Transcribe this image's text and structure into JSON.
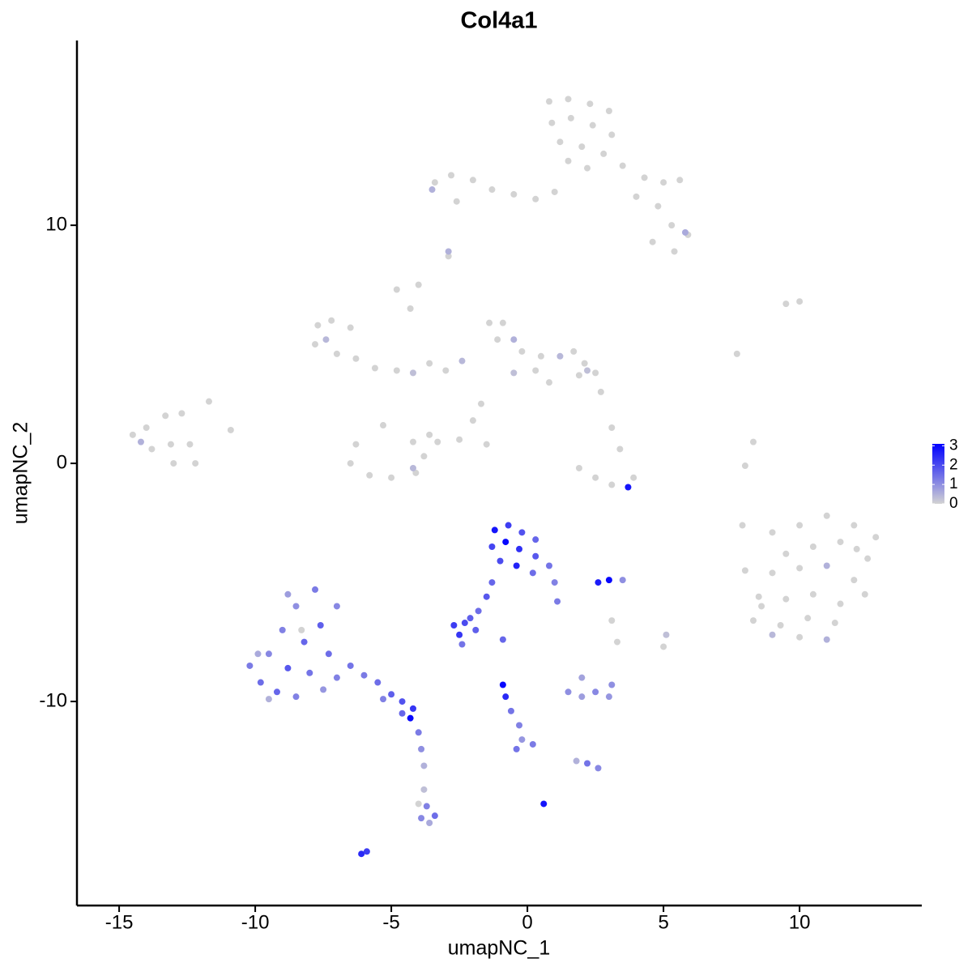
{
  "chart_data": {
    "type": "scatter",
    "title": "Col4a1",
    "x_label": "umapNC_1",
    "y_label": "umapNC_2",
    "xlim": [
      -16.55,
      14.49
    ],
    "ylim": [
      -18.57,
      17.76
    ],
    "xticks": [
      -15,
      -10,
      -5,
      0,
      5,
      10
    ],
    "yticks": [
      -10,
      0,
      10
    ],
    "grid": false,
    "color_scale": {
      "low": "#d3d3d3",
      "high": "#0000ff",
      "lim": [
        0,
        3.1
      ],
      "ticks": [
        0,
        1,
        2,
        3
      ]
    },
    "x": [
      0.8,
      1.5,
      2.3,
      3.0,
      0.9,
      1.6,
      2.4,
      3.1,
      1.2,
      2.0,
      2.8,
      1.5,
      2.2,
      3.5,
      4.3,
      5.0,
      5.6,
      4.0,
      4.8,
      5.3,
      5.9,
      4.6,
      5.4,
      1.0,
      0.3,
      -0.5,
      -1.3,
      -2.0,
      -2.8,
      -3.4,
      -2.6,
      -3.5,
      5.8,
      -2.9,
      -2.9,
      -7.7,
      -7.2,
      -6.5,
      -7.8,
      -7.0,
      -6.3,
      -5.6,
      -7.4,
      -4.8,
      -4.2,
      -3.6,
      -3.0,
      -2.4,
      -4.3,
      -4.0,
      -4.8,
      -1.7,
      -2.0,
      -2.5,
      -1.5,
      -1.4,
      -0.9,
      -1.1,
      -0.5,
      -0.2,
      0.5,
      1.2,
      1.7,
      2.1,
      2.5,
      1.9,
      2.2,
      0.8,
      -0.5,
      0.3,
      -6.3,
      -6.5,
      -5.8,
      -5.0,
      -4.1,
      -3.8,
      -4.2,
      -3.6,
      -5.3,
      -4.2,
      -3.3,
      -14.5,
      -14.0,
      -13.3,
      -12.7,
      -13.8,
      -13.1,
      -12.4,
      -12.2,
      -13.0,
      -14.2,
      -11.7,
      -10.9,
      1.9,
      2.5,
      3.1,
      3.9,
      3.7,
      3.4,
      3.1,
      2.7,
      7.7,
      8.0,
      8.3,
      9.5,
      10.0,
      7.9,
      9.0,
      10.0,
      11.0,
      12.0,
      12.8,
      9.5,
      10.5,
      11.5,
      12.5,
      8.0,
      9.0,
      10.0,
      11.0,
      12.0,
      8.5,
      9.5,
      10.5,
      11.5,
      12.4,
      8.3,
      9.3,
      10.3,
      11.3,
      9.0,
      10.0,
      11.0,
      8.6,
      12.1,
      -1.2,
      -0.7,
      -0.2,
      0.3,
      -1.3,
      -0.8,
      -0.3,
      0.3,
      -1.0,
      -0.4,
      0.2,
      0.8,
      1.0,
      1.1,
      -1.3,
      -1.5,
      -1.8,
      -2.1,
      -2.7,
      -2.3,
      -1.9,
      -2.5,
      -2.4,
      -0.9,
      2.6,
      3.0,
      3.5,
      5.1,
      5.0,
      3.3,
      3.1,
      1.5,
      2.0,
      2.5,
      3.0,
      3.1,
      2.0,
      -0.9,
      -0.8,
      -0.6,
      -0.3,
      -0.2,
      -0.4,
      0.2,
      1.8,
      2.2,
      2.6,
      0.6,
      -6.1,
      -5.9,
      -10.2,
      -9.8,
      -9.5,
      -9.2,
      -9.0,
      -8.8,
      -8.5,
      -8.5,
      -8.2,
      -8.0,
      -7.8,
      -7.6,
      -7.5,
      -7.3,
      -7.0,
      -7.0,
      -8.8,
      -9.5,
      -9.9,
      -8.3,
      -6.5,
      -6.0,
      -5.5,
      -5.0,
      -4.6,
      -4.2,
      -4.3,
      -4.6,
      -5.3,
      -4.0,
      -3.9,
      -3.8,
      -3.8,
      -3.7,
      -3.4,
      -3.6,
      -3.9,
      -4.0
    ],
    "y": [
      15.2,
      15.3,
      15.1,
      14.8,
      14.3,
      14.5,
      14.2,
      13.8,
      13.5,
      13.3,
      13.0,
      12.7,
      12.4,
      12.5,
      12.0,
      11.8,
      11.9,
      11.2,
      10.8,
      10.0,
      9.6,
      9.3,
      8.9,
      11.4,
      11.1,
      11.3,
      11.5,
      11.9,
      12.1,
      11.8,
      11.0,
      11.5,
      9.7,
      8.7,
      8.9,
      5.8,
      6.0,
      5.7,
      5.0,
      4.6,
      4.4,
      4.0,
      5.2,
      3.9,
      3.8,
      4.2,
      3.9,
      4.3,
      6.5,
      7.5,
      7.3,
      2.5,
      1.8,
      1.0,
      0.8,
      5.9,
      5.9,
      5.2,
      5.2,
      4.7,
      4.5,
      4.5,
      4.7,
      4.2,
      3.8,
      3.7,
      3.9,
      3.4,
      3.8,
      3.9,
      0.8,
      0.0,
      -0.5,
      -0.6,
      -0.4,
      0.3,
      0.9,
      1.2,
      1.6,
      -0.2,
      0.9,
      1.2,
      1.5,
      2.0,
      2.1,
      0.6,
      0.8,
      0.8,
      0.0,
      0.0,
      0.9,
      2.6,
      1.4,
      -0.2,
      -0.6,
      -0.9,
      -0.6,
      -1.0,
      0.6,
      1.5,
      3.0,
      4.6,
      -0.1,
      0.9,
      6.7,
      6.8,
      -2.6,
      -2.9,
      -2.6,
      -2.2,
      -2.6,
      -3.1,
      -3.8,
      -3.5,
      -3.3,
      -4.0,
      -4.5,
      -4.6,
      -4.4,
      -4.3,
      -4.9,
      -5.6,
      -5.7,
      -5.5,
      -5.9,
      -5.5,
      -6.6,
      -6.8,
      -6.5,
      -6.7,
      -7.2,
      -7.3,
      -7.4,
      -6.0,
      -3.6,
      -2.8,
      -2.6,
      -2.9,
      -3.2,
      -3.5,
      -3.3,
      -3.6,
      -3.9,
      -4.1,
      -4.3,
      -4.6,
      -4.3,
      -5.0,
      -5.8,
      -5.0,
      -5.6,
      -6.2,
      -6.5,
      -6.8,
      -6.7,
      -7.0,
      -7.2,
      -7.6,
      -7.4,
      -5.0,
      -4.9,
      -4.9,
      -7.2,
      -7.7,
      -7.5,
      -6.6,
      -9.6,
      -9.8,
      -9.6,
      -9.8,
      -9.3,
      -9.0,
      -9.3,
      -9.8,
      -10.4,
      -11.0,
      -11.6,
      -12.0,
      -11.8,
      -12.5,
      -12.6,
      -12.8,
      -14.3,
      -16.4,
      -16.3,
      -8.5,
      -9.2,
      -8.0,
      -9.6,
      -7.0,
      -8.6,
      -6.0,
      -9.8,
      -7.5,
      -8.8,
      -5.3,
      -6.8,
      -9.5,
      -8.0,
      -6.0,
      -9.0,
      -5.5,
      -9.9,
      -8.0,
      -7.0,
      -8.5,
      -8.9,
      -9.2,
      -9.7,
      -10.0,
      -10.3,
      -10.7,
      -10.5,
      -9.9,
      -11.3,
      -12.0,
      -12.7,
      -13.7,
      -14.4,
      -14.8,
      -15.1,
      -14.9,
      -14.3
    ],
    "expression": [
      0,
      0,
      0,
      0,
      0,
      0,
      0,
      0,
      0,
      0,
      0,
      0,
      0,
      0,
      0,
      0,
      0,
      0,
      0,
      0,
      0,
      0,
      0,
      0,
      0,
      0,
      0,
      0,
      0,
      0,
      0,
      0.5,
      0.6,
      0,
      0.5,
      0,
      0,
      0,
      0,
      0,
      0,
      0,
      0.4,
      0,
      0.3,
      0,
      0,
      0.4,
      0,
      0,
      0,
      0,
      0,
      0,
      0,
      0,
      0,
      0,
      0.5,
      0,
      0,
      0.4,
      0,
      0,
      0,
      0,
      0.3,
      0,
      0.3,
      0,
      0,
      0,
      0,
      0,
      0,
      0,
      0,
      0,
      0,
      0.4,
      0,
      0,
      0,
      0,
      0,
      0,
      0,
      0,
      0,
      0,
      0.5,
      0,
      0,
      0,
      0,
      0,
      0,
      2.8,
      0,
      0,
      0,
      0,
      0,
      0,
      0,
      0,
      0,
      0,
      0,
      0,
      0,
      0,
      0,
      0,
      0,
      0,
      0,
      0,
      0,
      0.5,
      0,
      0,
      0,
      0,
      0,
      0,
      0,
      0,
      0,
      0,
      0.4,
      0,
      0.5,
      0,
      0,
      2.8,
      2.2,
      1.9,
      1.6,
      2.1,
      3.0,
      2.4,
      1.8,
      2.0,
      2.6,
      1.5,
      1.4,
      1.2,
      1.3,
      1.6,
      1.8,
      1.5,
      1.7,
      2.2,
      2.0,
      1.7,
      2.3,
      1.4,
      1.6,
      2.7,
      3.0,
      1.0,
      0.3,
      0,
      0,
      0,
      1.0,
      0.8,
      1.1,
      0.9,
      1.0,
      0.7,
      3.0,
      2.5,
      1.4,
      1.2,
      0.9,
      1.4,
      1.3,
      0.5,
      1.4,
      1.1,
      2.8,
      2.5,
      2.2,
      1.3,
      1.5,
      1.1,
      1.6,
      1.2,
      1.8,
      1.0,
      1.2,
      1.6,
      1.4,
      1.3,
      1.7,
      0.9,
      1.5,
      1.1,
      1.2,
      0.8,
      0.5,
      0.6,
      0,
      1.4,
      1.3,
      1.5,
      1.7,
      1.9,
      2.3,
      3.0,
      1.6,
      1.2,
      1.3,
      1.0,
      0.5,
      0.3,
      1.2,
      1.5,
      0.6,
      1.1,
      0
    ]
  }
}
